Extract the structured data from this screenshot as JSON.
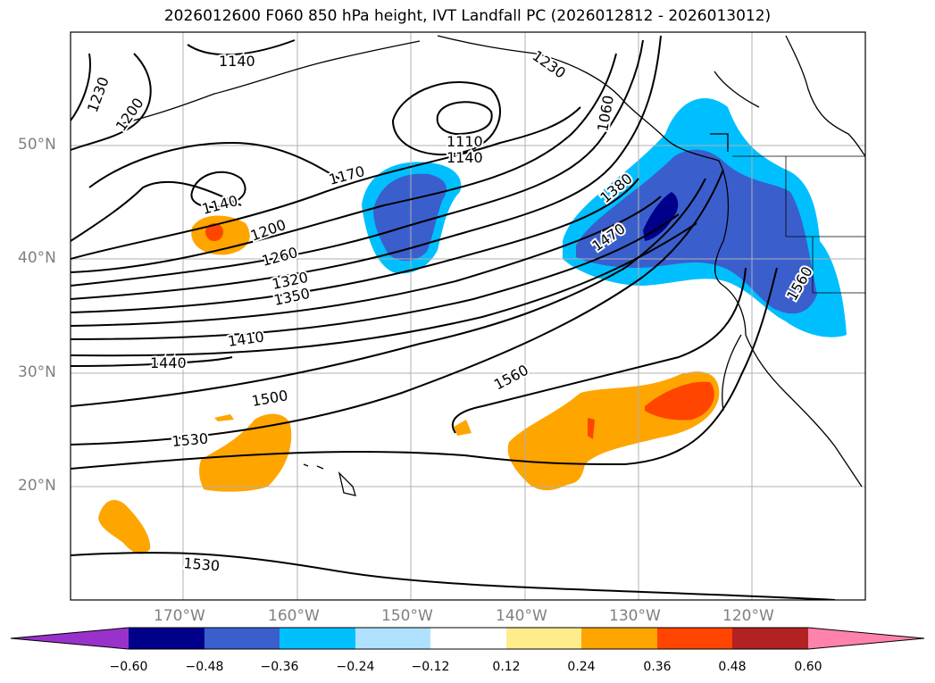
{
  "title": "2026012600 F060 850 hPa height, IVT Landfall PC (2026012812 - 2026013012)",
  "lat_labels": [
    "50°N",
    "40°N",
    "30°N",
    "20°N"
  ],
  "lon_labels": [
    "170°W",
    "160°W",
    "150°W",
    "140°W",
    "130°W",
    "120°W"
  ],
  "contour_labels": [
    "1140",
    "1230",
    "1200",
    "1230",
    "1060",
    "1110",
    "1140",
    "1170",
    "1140",
    "1200",
    "1260",
    "1320",
    "1350",
    "1380",
    "1470",
    "1560",
    "1410",
    "1440",
    "1500",
    "1530",
    "1560",
    "1530"
  ],
  "colorbar": {
    "ticks": [
      "−0.60",
      "−0.48",
      "−0.36",
      "−0.24",
      "−0.12",
      "0.12",
      "0.24",
      "0.36",
      "0.48",
      "0.60"
    ],
    "colors": [
      "#9932cc",
      "#00008b",
      "#3a5fcd",
      "#00bfff",
      "#b0e2ff",
      "#ffffff",
      "#ffec8b",
      "#ffa500",
      "#ff4500",
      "#b22222",
      "#ff82ab"
    ]
  }
}
